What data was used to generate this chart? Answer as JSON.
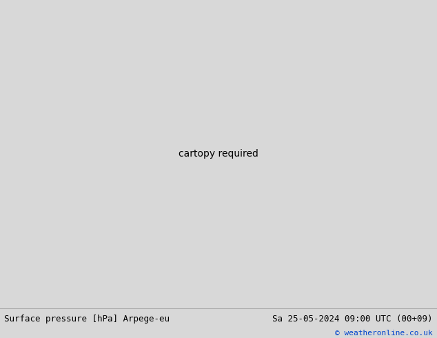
{
  "title_left": "Surface pressure [hPa] Arpege-eu",
  "title_right": "Sa 25-05-2024 09:00 UTC (00+09)",
  "copyright": "© weatheronline.co.uk",
  "bg_color": "#d8d8d8",
  "land_color": "#c8ecc8",
  "border_color": "#999999",
  "sea_color": "#d8d8d8",
  "fig_width": 6.34,
  "fig_height": 4.9,
  "dpi": 100,
  "bottom_bar_color": "#ffffff",
  "title_fontsize": 9.0,
  "copyright_fontsize": 8,
  "map_extent": [
    -20,
    15,
    46,
    62
  ],
  "blue_color": "#0000ff",
  "black_color": "#000000",
  "red_color": "#cc0000",
  "blue_linewidth": 0.9,
  "black_linewidth": 1.8,
  "red_linewidth": 1.1,
  "label_fontsize": 7.5
}
